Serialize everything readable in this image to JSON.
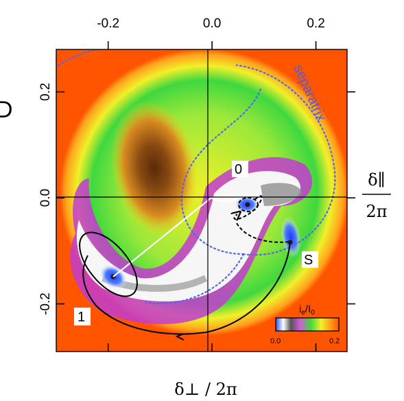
{
  "chart_data": {
    "type": "heatmap",
    "panel_label": "D",
    "xlabel": "δ⊥ / 2π",
    "ylabel_num": "δ∥",
    "ylabel_den": "2π",
    "xlim": [
      -0.3,
      0.26
    ],
    "ylim": [
      -0.29,
      0.28
    ],
    "x_ticks": [
      -0.2,
      0.0,
      0.2
    ],
    "x_tick_labels": [
      "-0.2",
      "0.0",
      "0.2"
    ],
    "y_ticks": [
      0.2,
      0.0,
      -0.2
    ],
    "y_tick_labels": [
      "0.2",
      "0.0",
      "-0.2"
    ],
    "colorbar": {
      "label": "i_e/I_0",
      "label_main": "i",
      "label_sub1": "e",
      "label_sep": "/I",
      "label_sub2": "0",
      "min_label": "0.0",
      "max_label": "0.2",
      "range": [
        0.0,
        0.2
      ],
      "colors": [
        "#2a52ff",
        "#ffffff",
        "#555555",
        "#d45ad8",
        "#3fd83f",
        "#f0f02a",
        "#ffa21c",
        "#ff5500"
      ]
    },
    "annotations": [
      {
        "text": "separatrix",
        "x": 0.21,
        "y": 0.17
      },
      {
        "text": "0",
        "x": 0.06,
        "y": 0.055
      },
      {
        "text": "S",
        "x": 0.2,
        "y": -0.115
      },
      {
        "text": "1",
        "x": -0.245,
        "y": -0.23
      }
    ],
    "points": [
      {
        "name": "0",
        "x": 0.075,
        "y": -0.015
      },
      {
        "name": "S",
        "x": 0.16,
        "y": -0.09
      },
      {
        "name": "1",
        "x": -0.188,
        "y": -0.153
      }
    ]
  }
}
